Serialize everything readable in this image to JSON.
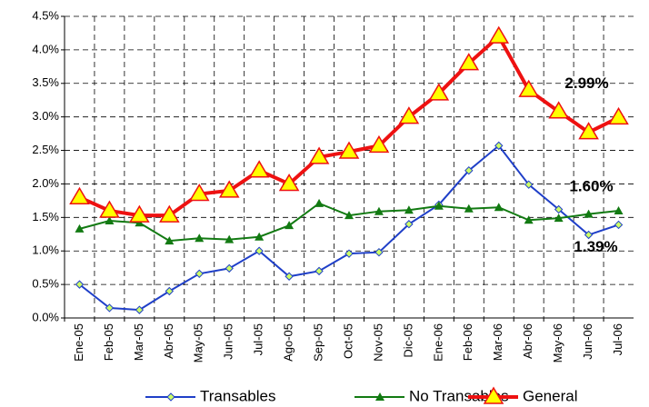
{
  "chart_data": {
    "type": "line",
    "categories": [
      "Ene-05",
      "Feb-05",
      "Mar-05",
      "Abr-05",
      "May-05",
      "Jun-05",
      "Jul-05",
      "Ago-05",
      "Sep-05",
      "Oct-05",
      "Nov-05",
      "Dic-05",
      "Ene-06",
      "Feb-06",
      "Mar-06",
      "Abr-06",
      "May-06",
      "Jun-06",
      "Jul-06"
    ],
    "series": [
      {
        "name": "Transables",
        "color": "#1f3fc8",
        "marker": "diamond",
        "values": [
          0.5,
          0.15,
          0.12,
          0.4,
          0.66,
          0.74,
          1.0,
          0.62,
          0.7,
          0.96,
          0.98,
          1.4,
          1.69,
          2.2,
          2.57,
          1.99,
          1.62,
          1.24,
          1.39
        ],
        "value_labels": [
          null,
          null,
          null,
          null,
          null,
          null,
          null,
          null,
          null,
          null,
          null,
          null,
          null,
          null,
          null,
          null,
          null,
          null,
          "1.39%"
        ]
      },
      {
        "name": "No Transables",
        "color": "#127a12",
        "marker": "triangle",
        "values": [
          1.33,
          1.45,
          1.42,
          1.15,
          1.19,
          1.17,
          1.21,
          1.38,
          1.71,
          1.53,
          1.59,
          1.61,
          1.67,
          1.63,
          1.65,
          1.46,
          1.49,
          1.55,
          1.6
        ],
        "value_labels": [
          null,
          null,
          null,
          null,
          null,
          null,
          null,
          null,
          null,
          null,
          null,
          null,
          null,
          null,
          null,
          null,
          null,
          null,
          "1.60%"
        ]
      },
      {
        "name": "General",
        "color": "#ee1111",
        "marker": "big-triangle",
        "values": [
          1.8,
          1.6,
          1.53,
          1.53,
          1.85,
          1.9,
          2.2,
          2.0,
          2.4,
          2.48,
          2.57,
          3.0,
          3.35,
          3.8,
          4.2,
          3.4,
          3.08,
          2.77,
          2.99
        ],
        "value_labels": [
          null,
          null,
          null,
          null,
          null,
          null,
          null,
          null,
          null,
          null,
          null,
          null,
          null,
          null,
          null,
          null,
          null,
          null,
          "2.99%"
        ]
      }
    ],
    "ylim": [
      0,
      4.5
    ],
    "yticks": [
      {
        "value": 0,
        "label": "0.0%"
      },
      {
        "value": 0.5,
        "label": "0.5%"
      },
      {
        "value": 1,
        "label": "1.0%"
      },
      {
        "value": 1.5,
        "label": "1.5%"
      },
      {
        "value": 2,
        "label": "2.0%"
      },
      {
        "value": 2.5,
        "label": "2.5%"
      },
      {
        "value": 3,
        "label": "3.0%"
      },
      {
        "value": 3.5,
        "label": "3.5%"
      },
      {
        "value": 4,
        "label": "4.0%"
      },
      {
        "value": 4.5,
        "label": "4.5%"
      }
    ],
    "grid": true,
    "legend": "bottom"
  }
}
